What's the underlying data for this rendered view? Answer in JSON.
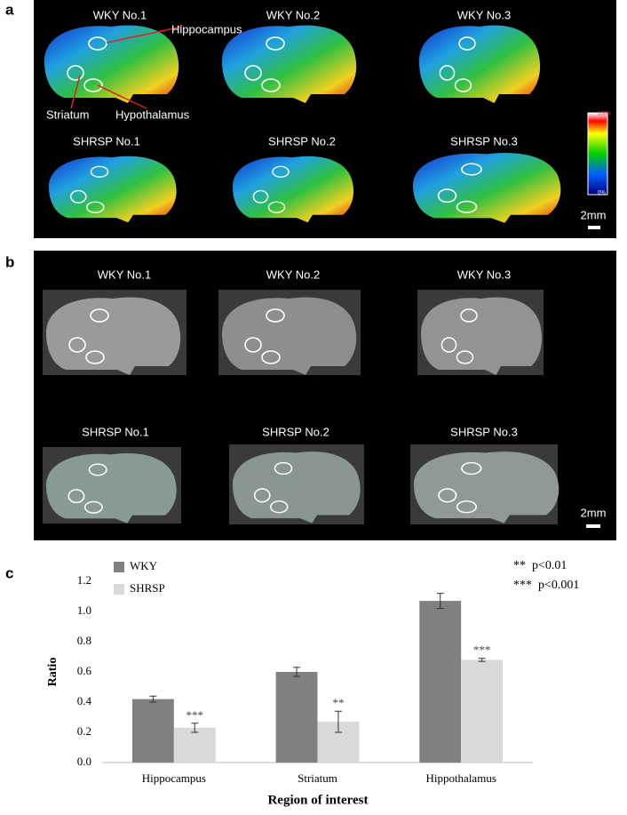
{
  "panel_a": {
    "label": "a",
    "images": [
      "WKY No.1",
      "WKY No.2",
      "WKY No.3",
      "SHRSP No.1",
      "SHRSP No.2",
      "SHRSP No.3"
    ],
    "annotations": [
      "Hippocampus",
      "Striatum",
      "Hypothalamus"
    ],
    "colorbar": {
      "max": "100%",
      "min": "0%"
    },
    "scale": "2mm"
  },
  "panel_b": {
    "label": "b",
    "images": [
      "WKY No.1",
      "WKY No.2",
      "WKY No.3",
      "SHRSP No.1",
      "SHRSP No.2",
      "SHRSP No.3"
    ],
    "scale": "2mm"
  },
  "chart_data": {
    "panel_label": "c",
    "type": "bar",
    "categories": [
      "Hippocampus",
      "Striatum",
      "Hippothalamus"
    ],
    "series": [
      {
        "name": "WKY",
        "color": "#808080",
        "values": [
          0.42,
          0.6,
          1.07
        ],
        "errors": [
          0.02,
          0.03,
          0.05
        ]
      },
      {
        "name": "SHRSP",
        "color": "#d9d9d9",
        "values": [
          0.23,
          0.27,
          0.68
        ],
        "errors": [
          0.03,
          0.07,
          0.01
        ],
        "annotations": [
          "***",
          "**",
          "***"
        ]
      }
    ],
    "notes": [
      "**  p<0.01",
      "***  p<0.001"
    ],
    "x_label": "Region of interest",
    "y_label": "Ratio",
    "ylim": [
      0,
      1.2
    ],
    "yticks": [
      {
        "value": 0,
        "label": "0.0"
      },
      0.2,
      0.4,
      0.6,
      0.8,
      {
        "value": 1,
        "label": "1.0"
      },
      1.2
    ],
    "grid": false
  }
}
